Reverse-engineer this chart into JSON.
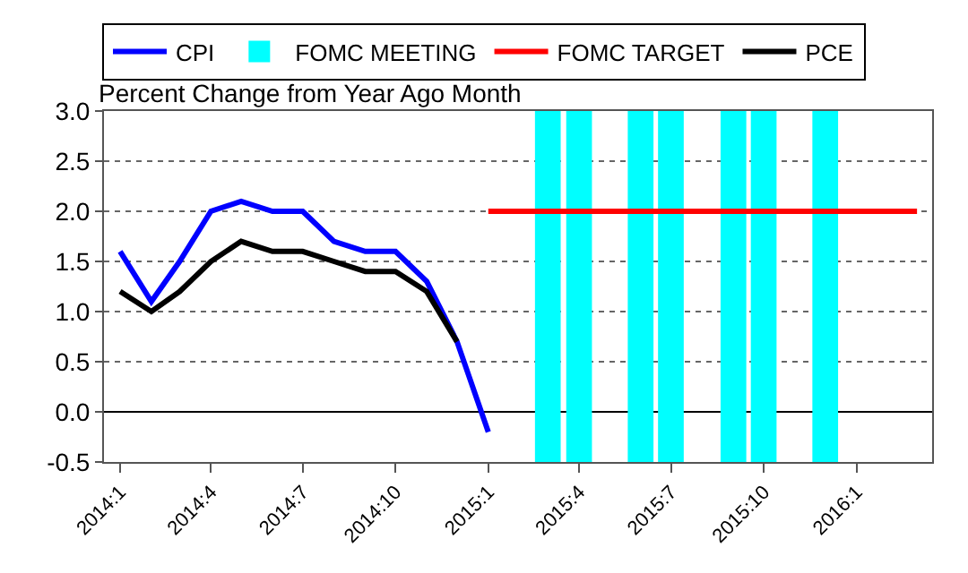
{
  "chart_data": {
    "type": "line",
    "ylabel": "Percent Change from Year Ago Month",
    "x": [
      "2014-01",
      "2014-02",
      "2014-03",
      "2014-04",
      "2014-05",
      "2014-06",
      "2014-07",
      "2014-08",
      "2014-09",
      "2014-10",
      "2014-11",
      "2014-12",
      "2015-01"
    ],
    "series": [
      {
        "name": "CPI",
        "color": "#0000ff",
        "values": [
          1.6,
          1.1,
          1.5,
          2.0,
          2.1,
          2.0,
          2.0,
          1.7,
          1.6,
          1.6,
          1.3,
          0.7,
          -0.2
        ]
      },
      {
        "name": "FOMC MEETING",
        "type": "bar",
        "color": "#00ffff",
        "x": [
          "2015-03",
          "2015-04",
          "2015-06",
          "2015-07",
          "2015-09",
          "2015-10",
          "2015-12"
        ],
        "values": [
          3.5,
          3.5,
          3.5,
          3.5,
          3.5,
          3.5,
          3.5
        ],
        "base": [
          -0.5,
          -0.5,
          -0.5,
          -0.5,
          -0.5,
          -0.5,
          -0.5
        ]
      },
      {
        "name": "FOMC TARGET",
        "color": "#ff0000",
        "x": [
          "2015-01",
          "2015-02",
          "2015-03",
          "2015-04",
          "2015-05",
          "2015-06",
          "2015-07",
          "2015-08",
          "2015-09",
          "2015-10",
          "2015-11",
          "2015-12",
          "2016-01",
          "2016-02",
          "2016-03"
        ],
        "values": [
          2,
          2,
          2,
          2,
          2,
          2,
          2,
          2,
          2,
          2,
          2,
          2,
          2,
          2,
          2
        ]
      },
      {
        "name": "PCE",
        "color": "#000000",
        "x": [
          "2014-01",
          "2014-02",
          "2014-03",
          "2014-04",
          "2014-05",
          "2014-06",
          "2014-07",
          "2014-08",
          "2014-09",
          "2014-10",
          "2014-11",
          "2014-12"
        ],
        "values": [
          1.2,
          1.0,
          1.2,
          1.5,
          1.7,
          1.6,
          1.6,
          1.5,
          1.4,
          1.4,
          1.2,
          0.7
        ]
      }
    ],
    "xlim": [
      "2013-12-16",
      "2016-03-16"
    ],
    "xticks": [
      {
        "value": "2014-01",
        "label": "2014:1"
      },
      {
        "value": "2014-04",
        "label": "2014:4"
      },
      {
        "value": "2014-07",
        "label": "2014:7"
      },
      {
        "value": "2014-10",
        "label": "2014:10"
      },
      {
        "value": "2015-01",
        "label": "2015:1"
      },
      {
        "value": "2015-04",
        "label": "2015:4"
      },
      {
        "value": "2015-07",
        "label": "2015:7"
      },
      {
        "value": "2015-10",
        "label": "2015:10"
      },
      {
        "value": "2016-01",
        "label": "2016:1"
      }
    ],
    "ylim": [
      -0.5,
      3
    ],
    "yticks": [
      {
        "value": -0.5,
        "label": "-0.5"
      },
      {
        "value": 0,
        "label": "0.0"
      },
      {
        "value": 0.5,
        "label": "0.5"
      },
      {
        "value": 1,
        "label": "1.0"
      },
      {
        "value": 1.5,
        "label": "1.5"
      },
      {
        "value": 2,
        "label": "2.0"
      },
      {
        "value": 2.5,
        "label": "2.5"
      },
      {
        "value": 3,
        "label": "3.0"
      }
    ],
    "grid": "y",
    "legend": "top",
    "marker": "none",
    "line_style": "solid"
  }
}
